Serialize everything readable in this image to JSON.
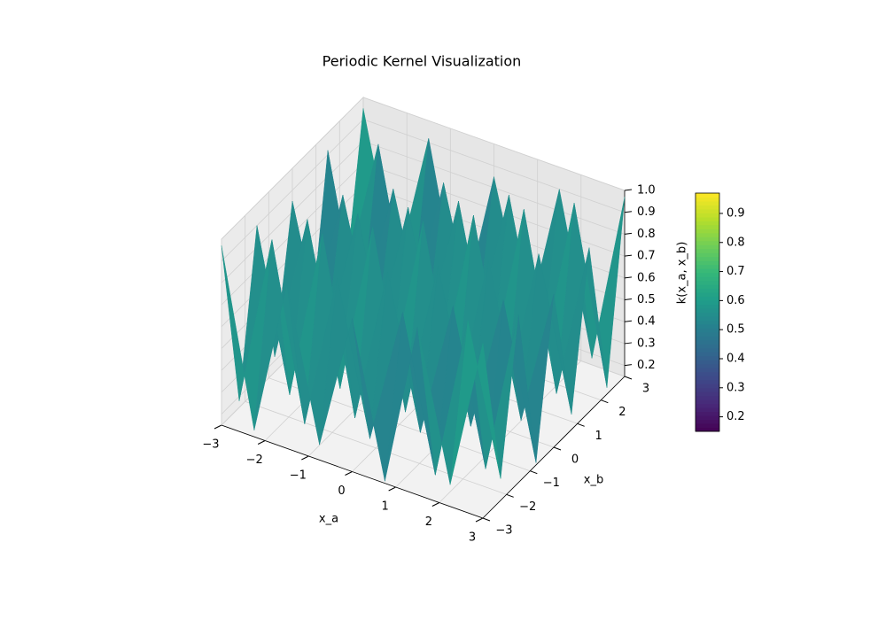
{
  "chart_data": {
    "type": "surface",
    "title": "Periodic Kernel Visualization",
    "x_label": "x_a",
    "y_label": "x_b",
    "z_label": "k(x_a, x_b)",
    "colormap": "viridis",
    "x": [
      -3,
      -2.25,
      -1.5,
      -0.75,
      0,
      0.75,
      1.5,
      2.25,
      3
    ],
    "y": [
      -3,
      -2.25,
      -1.5,
      -0.75,
      0,
      0.75,
      1.5,
      2.25,
      3
    ],
    "z": [
      [
        0.97,
        0.18,
        0.9,
        0.22,
        0.85,
        0.16,
        0.92,
        0.25,
        0.95
      ],
      [
        0.18,
        0.97,
        0.18,
        0.9,
        0.22,
        0.85,
        0.16,
        0.92,
        0.25
      ],
      [
        0.9,
        0.18,
        0.97,
        0.18,
        0.9,
        0.22,
        0.85,
        0.16,
        0.92
      ],
      [
        0.22,
        0.9,
        0.18,
        0.97,
        0.18,
        0.9,
        0.22,
        0.85,
        0.16
      ],
      [
        0.85,
        0.22,
        0.9,
        0.18,
        0.97,
        0.18,
        0.9,
        0.22,
        0.85
      ],
      [
        0.16,
        0.85,
        0.22,
        0.9,
        0.18,
        0.97,
        0.18,
        0.9,
        0.22
      ],
      [
        0.92,
        0.16,
        0.85,
        0.22,
        0.9,
        0.18,
        0.97,
        0.18,
        0.9
      ],
      [
        0.25,
        0.92,
        0.16,
        0.85,
        0.22,
        0.9,
        0.18,
        0.97,
        0.18
      ],
      [
        0.95,
        0.25,
        0.92,
        0.16,
        0.85,
        0.22,
        0.9,
        0.18,
        0.97
      ]
    ],
    "xlim": [
      -3,
      3
    ],
    "ylim": [
      -3,
      3
    ],
    "zlim": [
      0.15,
      1.0
    ],
    "xticks": [
      {
        "value": -3,
        "label": "−3"
      },
      {
        "value": -2,
        "label": "−2"
      },
      {
        "value": -1,
        "label": "−1"
      },
      0,
      1,
      2,
      3
    ],
    "yticks": [
      {
        "value": -3,
        "label": "−3"
      },
      {
        "value": -2,
        "label": "−2"
      },
      {
        "value": -1,
        "label": "−1"
      },
      0,
      1,
      2,
      3
    ],
    "zticks": [
      0.2,
      0.3,
      0.4,
      0.5,
      0.6,
      0.7,
      0.8,
      0.9,
      {
        "value": 1,
        "label": "1.0"
      }
    ],
    "clim": [
      0.15,
      0.97
    ],
    "cticks": [
      0.2,
      0.3,
      0.4,
      0.5,
      0.6,
      0.7,
      0.8,
      0.9
    ],
    "grid": true
  }
}
